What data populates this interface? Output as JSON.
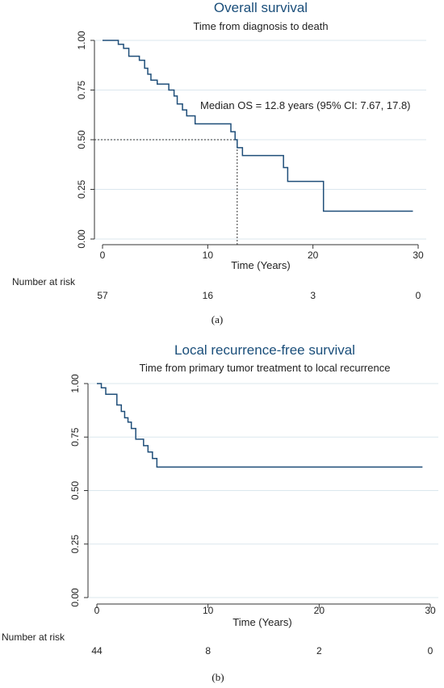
{
  "chart_data": [
    {
      "type": "line",
      "title": "Overall survival",
      "subtitle": "Time from diagnosis to death",
      "xlabel": "Time (Years)",
      "ylabel": "",
      "xlim": [
        0,
        30
      ],
      "ylim": [
        0,
        1
      ],
      "xticks": [
        "0",
        "10",
        "20",
        "30"
      ],
      "yticks": [
        "0.00",
        "0.25",
        "0.50",
        "0.75",
        "1.00"
      ],
      "grid": true,
      "series": [
        {
          "x": [
            0,
            1.5,
            2.0,
            2.5,
            3.5,
            4.0,
            4.3,
            4.6,
            5.2,
            6.3,
            6.8,
            7.1,
            7.6,
            8.0,
            8.8,
            12.2,
            12.6,
            12.8,
            13.3,
            17.2,
            17.6,
            21.0,
            29.5
          ],
          "y": [
            1.0,
            0.98,
            0.96,
            0.92,
            0.9,
            0.86,
            0.83,
            0.8,
            0.78,
            0.75,
            0.72,
            0.68,
            0.65,
            0.62,
            0.58,
            0.54,
            0.5,
            0.46,
            0.42,
            0.36,
            0.29,
            0.14,
            0.14
          ]
        }
      ],
      "annotation": "Median OS = 12.8 years (95% CI: 7.67, 17.8)",
      "median_x": 12.8,
      "risk_label": "Number at risk",
      "risk_times": [
        0,
        10,
        20,
        30
      ],
      "risk_values": [
        "57",
        "16",
        "3",
        "0"
      ],
      "caption": "(a)"
    },
    {
      "type": "line",
      "title": "Local recurrence-free survival",
      "subtitle": "Time from primary tumor treatment to local recurrence",
      "xlabel": "Time (Years)",
      "ylabel": "",
      "xlim": [
        0,
        30
      ],
      "ylim": [
        0,
        1
      ],
      "xticks": [
        "0",
        "10",
        "20",
        "30"
      ],
      "yticks": [
        "0.00",
        "0.25",
        "0.50",
        "0.75",
        "1.00"
      ],
      "grid": true,
      "series": [
        {
          "x": [
            0,
            0.4,
            0.8,
            1.8,
            2.2,
            2.5,
            2.8,
            3.1,
            3.5,
            4.2,
            4.6,
            5.0,
            5.4,
            29.3
          ],
          "y": [
            1.0,
            0.98,
            0.95,
            0.9,
            0.87,
            0.84,
            0.82,
            0.79,
            0.74,
            0.71,
            0.68,
            0.65,
            0.61,
            0.61
          ]
        }
      ],
      "risk_label": "Number at risk",
      "risk_times": [
        0,
        10,
        20,
        30
      ],
      "risk_values": [
        "44",
        "8",
        "2",
        "0"
      ],
      "caption": "(b)"
    }
  ],
  "colors": {
    "line": "#1f4e79",
    "grid": "#dbe7ee",
    "axis": "#333333"
  }
}
